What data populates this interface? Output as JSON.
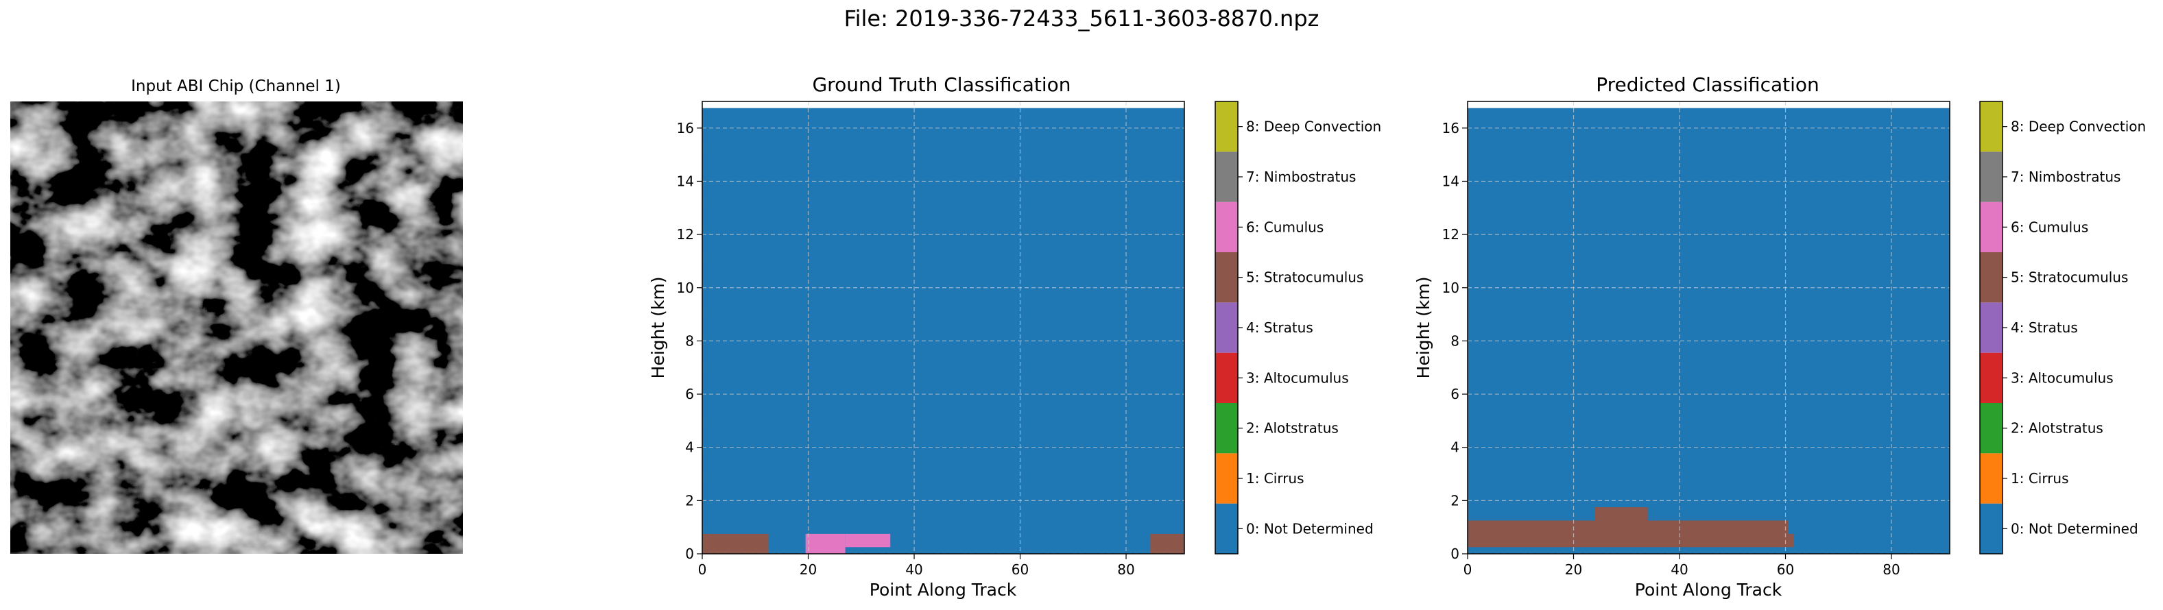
{
  "suptitle": "File: 2019-336-72433_5611-3603-8870.npz",
  "input_panel": {
    "title": "Input ABI Chip (Channel 1)",
    "image": "grayscale-satellite-chip"
  },
  "class_legend": {
    "labels": [
      "0: Not Determined",
      "1: Cirrus",
      "2: Alotstratus",
      "3: Altocumulus",
      "4: Stratus",
      "5: Stratocumulus",
      "6: Cumulus",
      "7: Nimbostratus",
      "8: Deep Convection"
    ],
    "colors": [
      "#1f77b4",
      "#ff7f0e",
      "#2ca02c",
      "#d62728",
      "#9467bd",
      "#8c564b",
      "#e377c2",
      "#7f7f7f",
      "#bcbd22",
      "#17becf"
    ]
  },
  "chart_data": [
    {
      "type": "heatmap",
      "title": "Ground Truth Classification",
      "xlabel": "Point Along Track",
      "ylabel": "Height (km)",
      "xlim": [
        0,
        91
      ],
      "ylim": [
        0,
        17
      ],
      "xticks": [
        "0",
        "20",
        "40",
        "60",
        "80"
      ],
      "yticks": [
        "0",
        "2",
        "4",
        "6",
        "8",
        "10",
        "12",
        "14",
        "16"
      ],
      "grid": true,
      "background_class": 0,
      "regions": [
        {
          "class": 5,
          "x": [
            0,
            12.5
          ],
          "y": [
            0,
            0.75
          ]
        },
        {
          "class": 6,
          "x": [
            19.5,
            27
          ],
          "y": [
            0,
            0.75
          ]
        },
        {
          "class": 6,
          "x": [
            27,
            35.5
          ],
          "y": [
            0.25,
            0.75
          ]
        },
        {
          "class": 5,
          "x": [
            84.5,
            91
          ],
          "y": [
            0,
            0.75
          ]
        }
      ],
      "top_blank_above": 16.75
    },
    {
      "type": "heatmap",
      "title": "Predicted Classification",
      "xlabel": "Point Along Track",
      "ylabel": "Height (km)",
      "xlim": [
        0,
        91
      ],
      "ylim": [
        0,
        17
      ],
      "xticks": [
        "0",
        "20",
        "40",
        "60",
        "80"
      ],
      "yticks": [
        "0",
        "2",
        "4",
        "6",
        "8",
        "10",
        "12",
        "14",
        "16"
      ],
      "grid": true,
      "background_class": 0,
      "regions": [
        {
          "class": 5,
          "x": [
            0,
            59.5
          ],
          "y": [
            0.25,
            1.25
          ]
        },
        {
          "class": 5,
          "x": [
            59.5,
            61.5
          ],
          "y": [
            0.25,
            0.75
          ]
        },
        {
          "class": 5,
          "x": [
            59.5,
            60.5
          ],
          "y": [
            0.75,
            1.25
          ]
        },
        {
          "class": 5,
          "x": [
            24,
            34
          ],
          "y": [
            1.25,
            1.75
          ]
        }
      ],
      "top_blank_above": 16.75
    }
  ]
}
